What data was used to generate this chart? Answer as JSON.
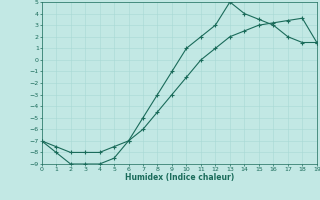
{
  "xlabel": "Humidex (Indice chaleur)",
  "bg_color": "#c2e8e4",
  "line_color": "#1a6b5a",
  "grid_color": "#a8d8d4",
  "xlim": [
    0,
    19
  ],
  "ylim": [
    -9,
    5
  ],
  "xticks": [
    0,
    1,
    2,
    3,
    4,
    5,
    6,
    7,
    8,
    9,
    10,
    11,
    12,
    13,
    14,
    15,
    16,
    17,
    18,
    19
  ],
  "yticks": [
    5,
    4,
    3,
    2,
    1,
    0,
    -1,
    -2,
    -3,
    -4,
    -5,
    -6,
    -7,
    -8,
    -9
  ],
  "curve1_x": [
    0,
    1,
    2,
    3,
    4,
    5,
    6,
    7,
    8,
    9,
    10,
    11,
    12,
    13,
    14,
    15,
    16,
    17,
    18,
    19
  ],
  "curve1_y": [
    -7,
    -8,
    -9,
    -9,
    -9,
    -8.5,
    -7,
    -5,
    -3,
    -1,
    1,
    2,
    3,
    5,
    4,
    3.5,
    3,
    2,
    1.5,
    1.5
  ],
  "curve2_x": [
    0,
    1,
    2,
    3,
    4,
    5,
    6,
    7,
    8,
    9,
    10,
    11,
    12,
    13,
    14,
    15,
    16,
    17,
    18,
    19
  ],
  "curve2_y": [
    -7,
    -7.5,
    -8,
    -8,
    -8,
    -7.5,
    -7,
    -6,
    -4.5,
    -3,
    -1.5,
    0,
    1,
    2,
    2.5,
    3,
    3.2,
    3.4,
    3.6,
    1.5
  ]
}
